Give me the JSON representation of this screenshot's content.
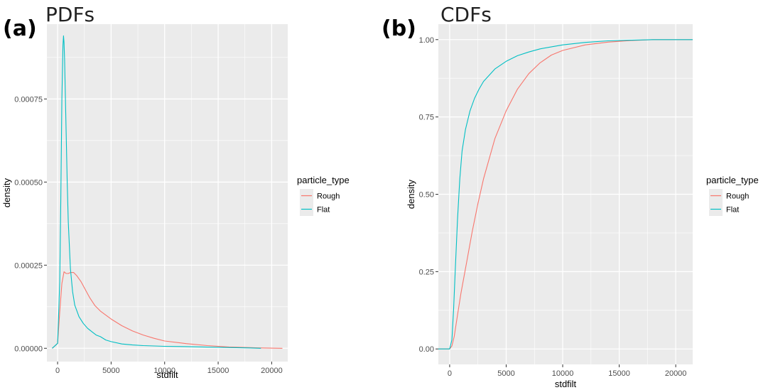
{
  "chart_data": [
    {
      "panel_label": "(a)",
      "title": "PDFs",
      "type": "line",
      "xlabel": "stdfilt",
      "ylabel": "density",
      "xlim": [
        -1000,
        21500
      ],
      "ylim": [
        -4e-05,
        0.000975
      ],
      "x_ticks": [
        0,
        5000,
        10000,
        15000,
        20000
      ],
      "x_tick_labels": [
        "0",
        "5000",
        "10000",
        "15000",
        "20000"
      ],
      "y_ticks": [
        0,
        0.00025,
        0.0005,
        0.00075
      ],
      "y_tick_labels": [
        "0.00000",
        "0.00025",
        "0.00050",
        "0.00075"
      ],
      "grid": true,
      "legend": {
        "title": "particle_type",
        "position": "right",
        "entries": [
          "Rough",
          "Flat"
        ]
      },
      "series": [
        {
          "name": "Rough",
          "color": "#F8766D",
          "x": [
            -500,
            0,
            200,
            400,
            600,
            800,
            1000,
            1200,
            1500,
            1800,
            2200,
            2600,
            3000,
            3500,
            4000,
            5000,
            6000,
            7000,
            8000,
            9000,
            10000,
            12000,
            14000,
            16000,
            18000,
            19000,
            21000
          ],
          "y": [
            0,
            1.5e-05,
            0.00011,
            0.000195,
            0.00023,
            0.000225,
            0.000225,
            0.000228,
            0.000228,
            0.000218,
            0.0002,
            0.000176,
            0.000152,
            0.000128,
            0.000112,
            8.8e-05,
            6.8e-05,
            5.2e-05,
            4e-05,
            3e-05,
            2.2e-05,
            1.4e-05,
            8e-06,
            4e-06,
            2e-06,
            1e-06,
            0
          ]
        },
        {
          "name": "Flat",
          "color": "#00BFC4",
          "x": [
            -500,
            0,
            200,
            300,
            400,
            500,
            550,
            600,
            650,
            700,
            800,
            900,
            1000,
            1200,
            1400,
            1600,
            2000,
            2400,
            2800,
            3200,
            3600,
            4000,
            4500,
            5000,
            6000,
            7000,
            8000,
            10000,
            12000,
            15000,
            18000,
            19000
          ],
          "y": [
            0,
            1.5e-05,
            0.0002,
            0.00045,
            0.00075,
            0.00091,
            0.00094,
            0.00092,
            0.00087,
            0.0008,
            0.00065,
            0.0005,
            0.00038,
            0.00024,
            0.00017,
            0.00013,
            9.5e-05,
            7.5e-05,
            6e-05,
            5e-05,
            4e-05,
            3.5e-05,
            2.5e-05,
            2e-05,
            1.3e-05,
            1e-05,
            8e-06,
            6e-06,
            5e-06,
            3e-06,
            1e-06,
            0
          ]
        }
      ]
    },
    {
      "panel_label": "(b)",
      "title": "CDFs",
      "type": "line",
      "xlabel": "stdfilt",
      "ylabel": "density",
      "xlim": [
        -1000,
        21500
      ],
      "ylim": [
        -0.05,
        1.05
      ],
      "x_ticks": [
        0,
        5000,
        10000,
        15000,
        20000
      ],
      "x_tick_labels": [
        "0",
        "5000",
        "10000",
        "15000",
        "20000"
      ],
      "y_ticks": [
        0,
        0.25,
        0.5,
        0.75,
        1.0
      ],
      "y_tick_labels": [
        "0.00",
        "0.25",
        "0.50",
        "0.75",
        "1.00"
      ],
      "grid": true,
      "legend": {
        "title": "particle_type",
        "position": "right",
        "entries": [
          "Rough",
          "Flat"
        ]
      },
      "series": [
        {
          "name": "Rough",
          "color": "#F8766D",
          "x": [
            -1000,
            0,
            200,
            400,
            700,
            1000,
            1500,
            2000,
            2500,
            3000,
            4000,
            5000,
            6000,
            7000,
            8000,
            9000,
            10000,
            12000,
            14000,
            16000,
            18000,
            21500
          ],
          "y": [
            0,
            0,
            0.01,
            0.04,
            0.11,
            0.18,
            0.28,
            0.38,
            0.47,
            0.55,
            0.68,
            0.77,
            0.84,
            0.89,
            0.925,
            0.95,
            0.965,
            0.983,
            0.992,
            0.997,
            1.0,
            1.0
          ]
        },
        {
          "name": "Flat",
          "color": "#00BFC4",
          "x": [
            -1000,
            0,
            200,
            350,
            500,
            700,
            900,
            1100,
            1400,
            1800,
            2200,
            2600,
            3000,
            4000,
            5000,
            6000,
            7000,
            8000,
            10000,
            12000,
            14000,
            16000,
            18000,
            21500
          ],
          "y": [
            0,
            0,
            0.03,
            0.13,
            0.26,
            0.42,
            0.55,
            0.64,
            0.71,
            0.77,
            0.81,
            0.84,
            0.865,
            0.905,
            0.93,
            0.948,
            0.96,
            0.97,
            0.983,
            0.991,
            0.996,
            0.998,
            1.0,
            1.0
          ]
        }
      ]
    }
  ]
}
